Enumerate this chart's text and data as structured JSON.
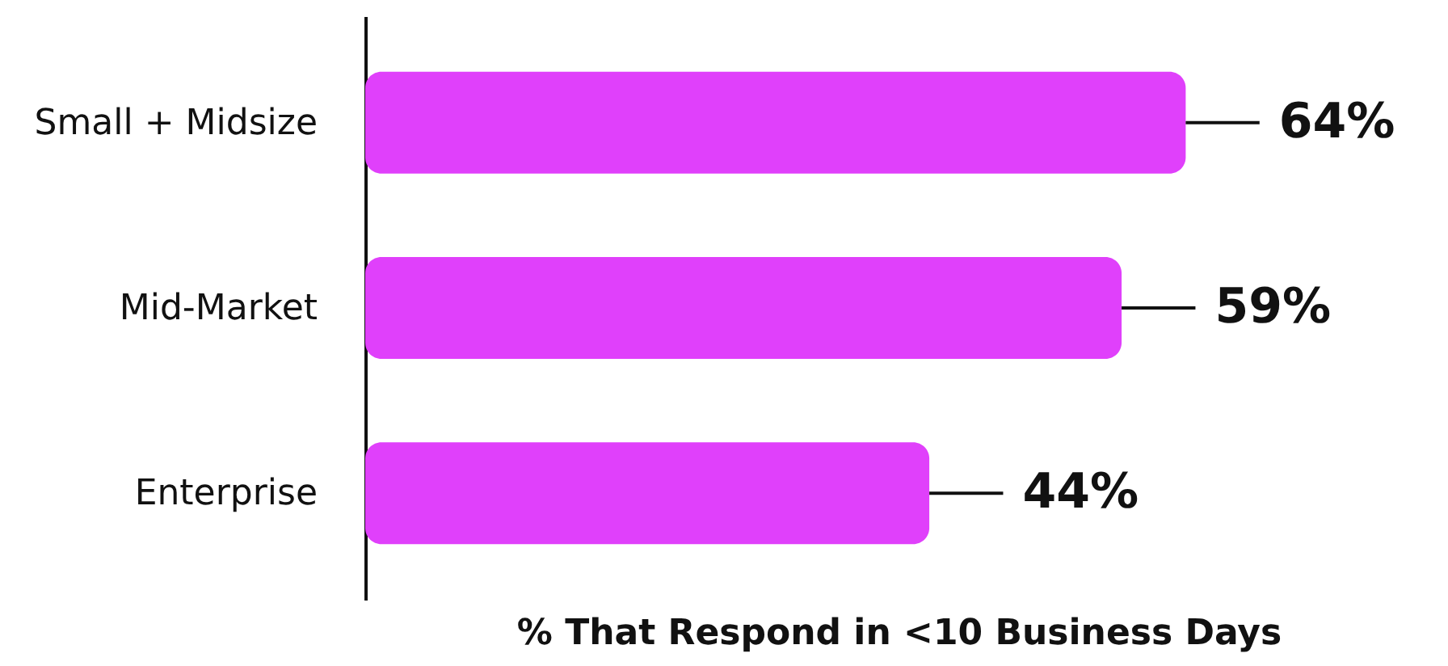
{
  "chart_data": {
    "type": "bar",
    "orientation": "horizontal",
    "categories": [
      "Small + Midsize",
      "Mid-Market",
      "Enterprise"
    ],
    "values": [
      64,
      59,
      44
    ],
    "value_labels": [
      "64%",
      "59%",
      "44%"
    ],
    "color": "#e040fb",
    "xlabel": "% That Respond in <10 Business Days",
    "grid": false
  }
}
